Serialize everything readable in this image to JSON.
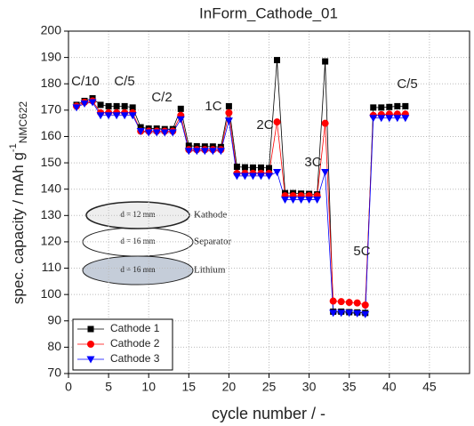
{
  "chart_data": {
    "type": "line",
    "title": "InForm_Cathode_01",
    "x_label": "cycle number / -",
    "y_label": {
      "text": "spec. capacity / mAh g",
      "sup": "-1",
      "sub": "NMC622"
    },
    "xlim": [
      0,
      50
    ],
    "xticks": [
      0,
      5,
      10,
      15,
      20,
      25,
      30,
      35,
      40,
      45
    ],
    "ylim": [
      70,
      200
    ],
    "yticks": [
      70,
      80,
      90,
      100,
      110,
      120,
      130,
      140,
      150,
      160,
      170,
      180,
      190,
      200
    ],
    "grid": true,
    "legend": "lower left",
    "x": [
      1,
      2,
      3,
      4,
      5,
      6,
      7,
      8,
      9,
      10,
      11,
      12,
      13,
      14,
      15,
      16,
      17,
      18,
      19,
      20,
      21,
      22,
      23,
      24,
      25,
      26,
      27,
      28,
      29,
      30,
      31,
      32,
      33,
      34,
      35,
      36,
      37,
      38,
      39,
      40,
      41,
      42
    ],
    "series": [
      {
        "name": "Cathode 1",
        "color": "#000000",
        "marker": "square",
        "values": [
          172,
          173.5,
          174.5,
          172,
          171.5,
          171.5,
          171.5,
          171,
          163.5,
          163,
          163,
          162.8,
          162.8,
          170.5,
          156.5,
          156.3,
          156.2,
          156.2,
          156,
          171.5,
          148.5,
          148.3,
          148.2,
          148.2,
          148,
          189,
          138.5,
          138.5,
          138.3,
          138.2,
          138,
          188.5,
          93.5,
          93.5,
          93.3,
          93.2,
          93,
          171,
          171,
          171.2,
          171.5,
          171.5
        ]
      },
      {
        "name": "Cathode 2",
        "color": "#ff0000",
        "marker": "circle",
        "values": [
          171.5,
          173,
          173.5,
          169,
          169,
          169,
          169,
          169,
          162,
          162,
          162,
          162,
          162,
          168,
          155,
          155,
          155,
          155,
          155,
          169,
          146,
          146,
          146,
          146,
          146,
          165.5,
          137.5,
          137.5,
          137.5,
          137.5,
          137.5,
          165,
          97.5,
          97.3,
          97,
          96.8,
          96,
          168,
          168.3,
          168.5,
          168.5,
          168.5
        ]
      },
      {
        "name": "Cathode 3",
        "color": "#0000ff",
        "marker": "triangle-down",
        "values": [
          171,
          172.5,
          173,
          168,
          168,
          168,
          168,
          168,
          162,
          161.5,
          161.5,
          161.5,
          161.5,
          166.5,
          154.5,
          154.5,
          154.5,
          154.5,
          154.5,
          166,
          145,
          145,
          145,
          145,
          145,
          146.5,
          136,
          136,
          136,
          136,
          136,
          146.5,
          93,
          93,
          93,
          92.8,
          92.5,
          167,
          167,
          167,
          167,
          167
        ]
      }
    ],
    "annotations": [
      "C/10",
      "C/5",
      "C/2",
      "1C",
      "2C",
      "3C",
      "5C",
      "C/5"
    ],
    "inset_labels": [
      {
        "diameter": "d = 12 mm",
        "layer": "Kathode"
      },
      {
        "diameter": "d = 16 mm",
        "layer": "Separator"
      },
      {
        "diameter": "d = 16 mm",
        "layer": "Lithium"
      }
    ]
  }
}
